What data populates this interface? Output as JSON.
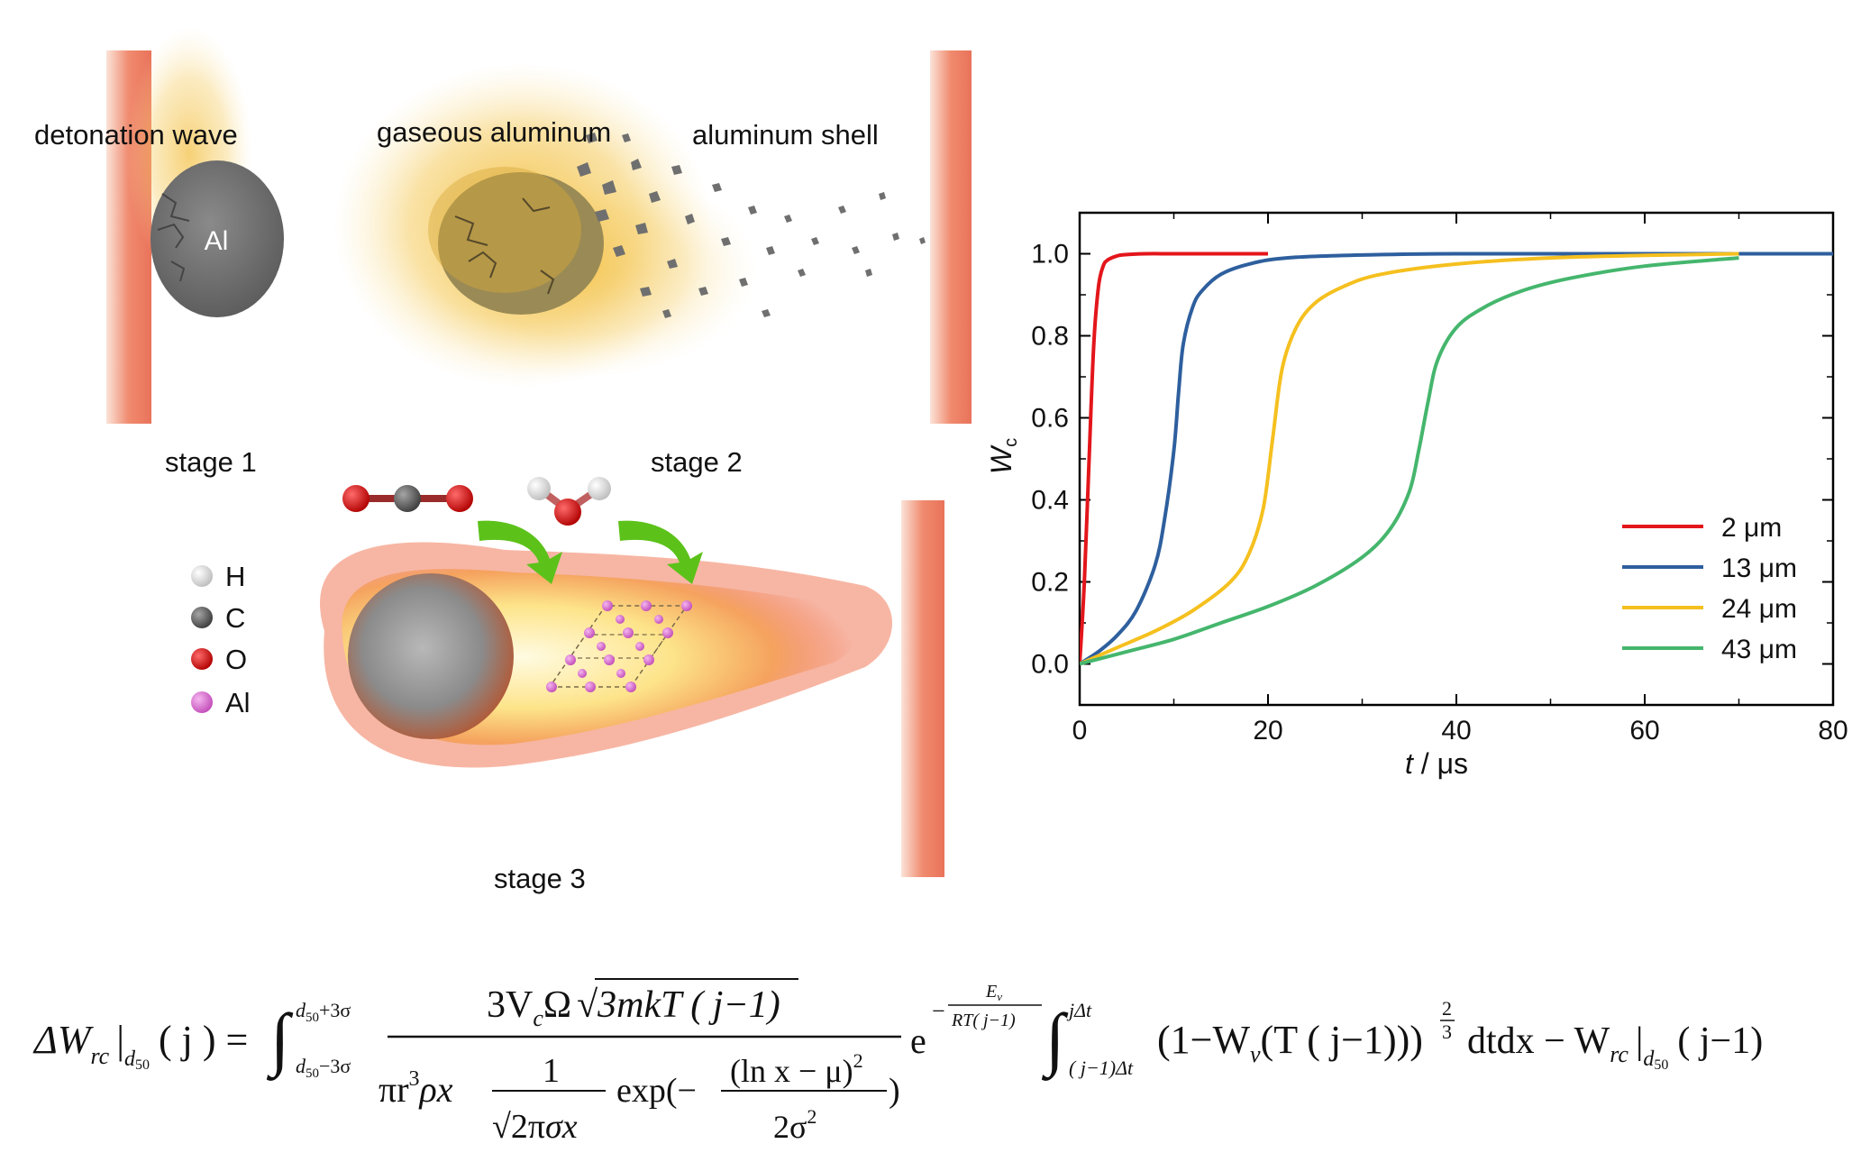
{
  "diagram": {
    "stage1": {
      "caption": "stage 1",
      "wave_label": "detonation wave",
      "particle_label": "Al"
    },
    "stage2": {
      "caption": "stage 2",
      "gas_label": "gaseous aluminum",
      "shell_label": "aluminum shell"
    },
    "stage3": {
      "caption": "stage 3",
      "legend": [
        {
          "symbol": "H",
          "color": "#f2f2f2"
        },
        {
          "symbol": "C",
          "color": "#6e6e6e"
        },
        {
          "symbol": "O",
          "color": "#e01010"
        },
        {
          "symbol": "Al",
          "color": "#e27ad9"
        }
      ]
    },
    "colors": {
      "wave": "#f08a6e",
      "gas": "#f5c242",
      "flame_outer": "#f07a5a",
      "flame_inner": "#fff1a8",
      "arrow": "#5cc21a",
      "particle": "#7a7a7a"
    }
  },
  "chart_data": {
    "type": "line",
    "xlabel_var": "t",
    "xlabel_unit": " / μs",
    "ylabel_var": "W",
    "ylabel_sub": "c",
    "xlim": [
      0,
      80
    ],
    "ylim": [
      -0.1,
      1.1
    ],
    "xticks": [
      0,
      20,
      40,
      60,
      80
    ],
    "yticks": [
      0.0,
      0.2,
      0.4,
      0.6,
      0.8,
      1.0
    ],
    "xtick_labels": [
      "0",
      "20",
      "40",
      "60",
      "80"
    ],
    "ytick_labels": [
      "0.0",
      "0.2",
      "0.4",
      "0.6",
      "0.8",
      "1.0"
    ],
    "legend_position": "lower-right",
    "series": [
      {
        "name": "2 μm",
        "color": "#e3161b",
        "x": [
          0,
          0.5,
          1,
          1.5,
          2,
          2.5,
          3,
          4,
          5,
          7,
          10,
          15,
          20
        ],
        "y": [
          0,
          0.2,
          0.5,
          0.78,
          0.92,
          0.97,
          0.985,
          0.995,
          0.998,
          1.0,
          1.0,
          1.0,
          1.0
        ]
      },
      {
        "name": "13 μm",
        "color": "#2e5f9e",
        "x": [
          0,
          2,
          4,
          6,
          8,
          9,
          10,
          10.5,
          11,
          12,
          13,
          15,
          18,
          22,
          30,
          40,
          60,
          80
        ],
        "y": [
          0,
          0.03,
          0.07,
          0.13,
          0.24,
          0.35,
          0.52,
          0.66,
          0.78,
          0.87,
          0.91,
          0.95,
          0.975,
          0.99,
          0.997,
          1.0,
          1.0,
          1.0
        ]
      },
      {
        "name": "24 μm",
        "color": "#f5c01f",
        "x": [
          0,
          4,
          8,
          12,
          16,
          18,
          19.5,
          20.5,
          21.5,
          23,
          25,
          28,
          32,
          40,
          50,
          60,
          70
        ],
        "y": [
          0,
          0.04,
          0.08,
          0.13,
          0.2,
          0.27,
          0.38,
          0.55,
          0.72,
          0.82,
          0.88,
          0.92,
          0.95,
          0.975,
          0.99,
          0.996,
          1.0
        ]
      },
      {
        "name": "43 μm",
        "color": "#45b66d",
        "x": [
          0,
          5,
          10,
          15,
          20,
          25,
          30,
          33,
          35,
          36,
          37,
          38,
          40,
          43,
          47,
          52,
          60,
          70
        ],
        "y": [
          0,
          0.03,
          0.06,
          0.1,
          0.14,
          0.19,
          0.26,
          0.33,
          0.42,
          0.52,
          0.64,
          0.74,
          0.82,
          0.87,
          0.91,
          0.94,
          0.97,
          0.99
        ]
      }
    ]
  },
  "equation": {
    "lhs_delta_w": "ΔW",
    "lhs_sub": "rc",
    "lhs_eval": "|",
    "lhs_eval_sub": "d",
    "lhs_eval_sub2": "50",
    "lhs_arg": "( j ) =",
    "int_upper": "d",
    "int_upper_sub": "50",
    "int_upper_rest": "+3σ",
    "int_lower": "d",
    "int_lower_sub": "50",
    "int_lower_rest": "−3σ",
    "num_coef": "3V",
    "num_coef_sub": "c",
    "num_omega": "Ω",
    "num_root": "3mkT ( j−1)",
    "den_start": "πr",
    "den_pow": "3",
    "den_rho": "ρx",
    "den_one": "1",
    "den_root": "2π",
    "den_sigma": "σx",
    "den_exp": "exp(−",
    "den_exp_num": "(ln x − μ)",
    "den_exp_num_pow": "2",
    "den_exp_den": "2σ",
    "den_exp_den_pow": "2",
    "den_close": ")",
    "exp_e": "e",
    "exp_minus": "−",
    "exp_num": "E",
    "exp_num_sub": "v",
    "exp_den": "RT( j−1)",
    "int2_upper": "jΔt",
    "int2_lower": "( j−1)Δt",
    "body": "(1−W",
    "body_sub": "v",
    "body_rest": "(T ( j−1)))",
    "pow_num": "2",
    "pow_den": "3",
    "tail": "dtdx − W",
    "tail_sub": "rc",
    "tail_eval": "|",
    "tail_eval_sub": "d",
    "tail_eval_sub2": "50",
    "tail_arg": "( j−1)"
  }
}
